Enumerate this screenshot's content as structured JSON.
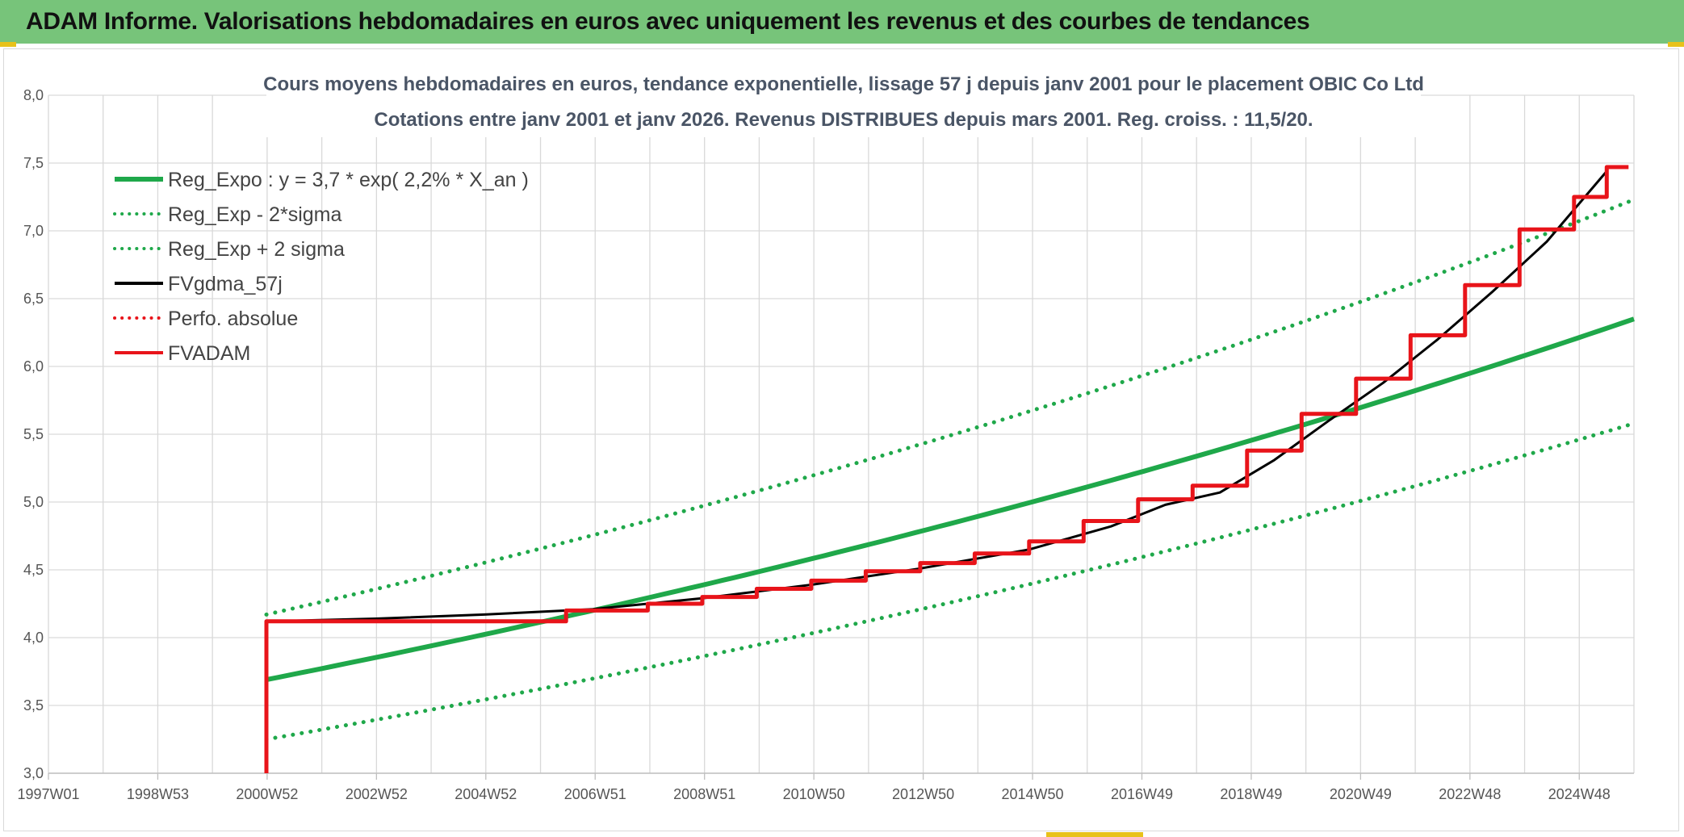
{
  "header": {
    "title": "ADAM Informe. Valorisations hebdomadaires en euros avec uniquement les revenus et des courbes de tendances"
  },
  "colors": {
    "header_bg": "#77c47a",
    "reg_green": "#1fa84a",
    "red": "#e8141a",
    "black": "#000000",
    "grid": "#d9d9d9"
  },
  "chart_data": {
    "type": "line",
    "title": [
      "Cours moyens hebdomadaires en euros, tendance exponentielle, lissage 57 j depuis janv 2001 pour le placement OBIC Co Ltd",
      "Cotations entre janv 2001 et janv 2026. Revenus DISTRIBUES depuis mars 2001. Reg. croiss. : 11,5/20."
    ],
    "xlabel": "",
    "ylabel": "",
    "x_tick_labels": [
      "1997W01",
      "1998W53",
      "2000W52",
      "2002W52",
      "2004W52",
      "2006W51",
      "2008W51",
      "2010W50",
      "2012W50",
      "2014W50",
      "2016W49",
      "2018W49",
      "2020W49",
      "2022W48",
      "2024W48"
    ],
    "x_range_years": [
      1997.0,
      2026.1
    ],
    "ylim": [
      3.0,
      8.0
    ],
    "y_ticks": [
      "3,0",
      "3,5",
      "4,0",
      "4,5",
      "5,0",
      "5,5",
      "6,0",
      "6,5",
      "7,0",
      "7,5",
      "8,0"
    ],
    "grid": true,
    "legend_position": "top-left",
    "series": [
      {
        "name": "Reg_Expo : y = 3,7 * exp( 2,2% *  X_an )",
        "style": "solid-thick",
        "color": "#1fa84a",
        "x": [
          2001.0,
          2004.0,
          2007.0,
          2010.0,
          2013.0,
          2016.0,
          2019.0,
          2022.0,
          2026.1
        ],
        "y": [
          3.69,
          3.94,
          4.22,
          4.52,
          4.84,
          5.17,
          5.53,
          5.91,
          6.35
        ]
      },
      {
        "name": "Reg_Exp - 2*sigma",
        "style": "dotted",
        "color": "#1fa84a",
        "x": [
          2001.0,
          2004.0,
          2007.0,
          2010.0,
          2013.0,
          2016.0,
          2019.0,
          2022.0,
          2026.1
        ],
        "y": [
          3.25,
          3.47,
          3.72,
          3.98,
          4.26,
          4.56,
          4.88,
          5.21,
          5.58
        ]
      },
      {
        "name": "Reg_Exp + 2 sigma",
        "style": "dotted",
        "color": "#1fa84a",
        "x": [
          2001.0,
          2004.0,
          2007.0,
          2010.0,
          2013.0,
          2016.0,
          2019.0,
          2022.0,
          2026.1
        ],
        "y": [
          4.17,
          4.44,
          4.76,
          5.1,
          5.45,
          5.83,
          6.24,
          6.67,
          7.23
        ]
      },
      {
        "name": "FVgdma_57j",
        "style": "solid",
        "color": "#000000",
        "x": [
          2001.1,
          2003.0,
          2005.0,
          2007.0,
          2009.0,
          2011.0,
          2013.0,
          2015.0,
          2016.5,
          2017.5,
          2018.5,
          2019.5,
          2020.5,
          2021.5,
          2022.5,
          2023.5,
          2024.5,
          2025.6
        ],
        "y": [
          4.12,
          4.14,
          4.17,
          4.21,
          4.29,
          4.39,
          4.51,
          4.65,
          4.82,
          4.98,
          5.07,
          5.31,
          5.6,
          5.88,
          6.2,
          6.55,
          6.92,
          7.44
        ]
      },
      {
        "name": "Perfo. absolue",
        "style": "dotted",
        "color": "#e8141a",
        "x": [
          2001.0,
          2026.0
        ],
        "y": [
          4.12,
          7.47
        ]
      },
      {
        "name": "FVADAM",
        "style": "solid-thick-step",
        "color": "#e8141a",
        "x": [
          2001.0,
          2001.0,
          2006.5,
          2008.0,
          2009.0,
          2010.0,
          2011.0,
          2012.0,
          2013.0,
          2014.0,
          2015.0,
          2016.0,
          2017.0,
          2018.0,
          2019.0,
          2020.0,
          2021.0,
          2022.0,
          2023.0,
          2024.0,
          2025.0,
          2025.6,
          2026.0
        ],
        "y": [
          3.0,
          4.12,
          4.2,
          4.25,
          4.3,
          4.36,
          4.42,
          4.49,
          4.55,
          4.62,
          4.71,
          4.86,
          5.02,
          5.12,
          5.38,
          5.65,
          5.91,
          6.23,
          6.6,
          7.01,
          7.25,
          7.47,
          7.47
        ]
      }
    ]
  }
}
